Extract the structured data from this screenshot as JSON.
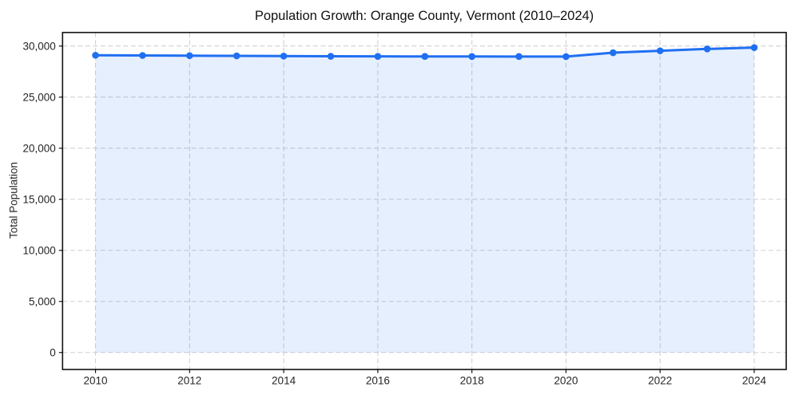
{
  "chart_data": {
    "type": "line",
    "title": "Population Growth: Orange County, Vermont (2010–2024)",
    "xlabel": "",
    "ylabel": "Total Population",
    "x": [
      2010,
      2011,
      2012,
      2013,
      2014,
      2015,
      2016,
      2017,
      2018,
      2019,
      2020,
      2021,
      2022,
      2023,
      2024
    ],
    "series": [
      {
        "name": "Total Population",
        "values": [
          29100,
          29080,
          29060,
          29040,
          29020,
          29000,
          28990,
          28985,
          28980,
          28975,
          28970,
          29350,
          29540,
          29720,
          29850
        ]
      }
    ],
    "area_fill_to_zero": true,
    "markers": true,
    "grid": true,
    "legend_position": "none",
    "xlim": [
      2009.3,
      2024.68
    ],
    "ylim": [
      -1660,
      31330
    ],
    "xticks": [
      2010,
      2012,
      2014,
      2016,
      2018,
      2020,
      2022,
      2024
    ],
    "yticks": [
      0,
      5000,
      10000,
      15000,
      20000,
      25000,
      30000
    ],
    "ytick_labels": [
      "0",
      "5,000",
      "10,000",
      "15,000",
      "20,000",
      "25,000",
      "30,000"
    ],
    "colors": {
      "line": "#1f6ff2",
      "marker": "#1f6ff2",
      "fill": "rgba(31, 111, 242, 0.115)",
      "grid": "#d0d0d0",
      "spine": "#111111",
      "tick_text": "#262626",
      "title_text": "#111111",
      "background": "#ffffff"
    }
  }
}
